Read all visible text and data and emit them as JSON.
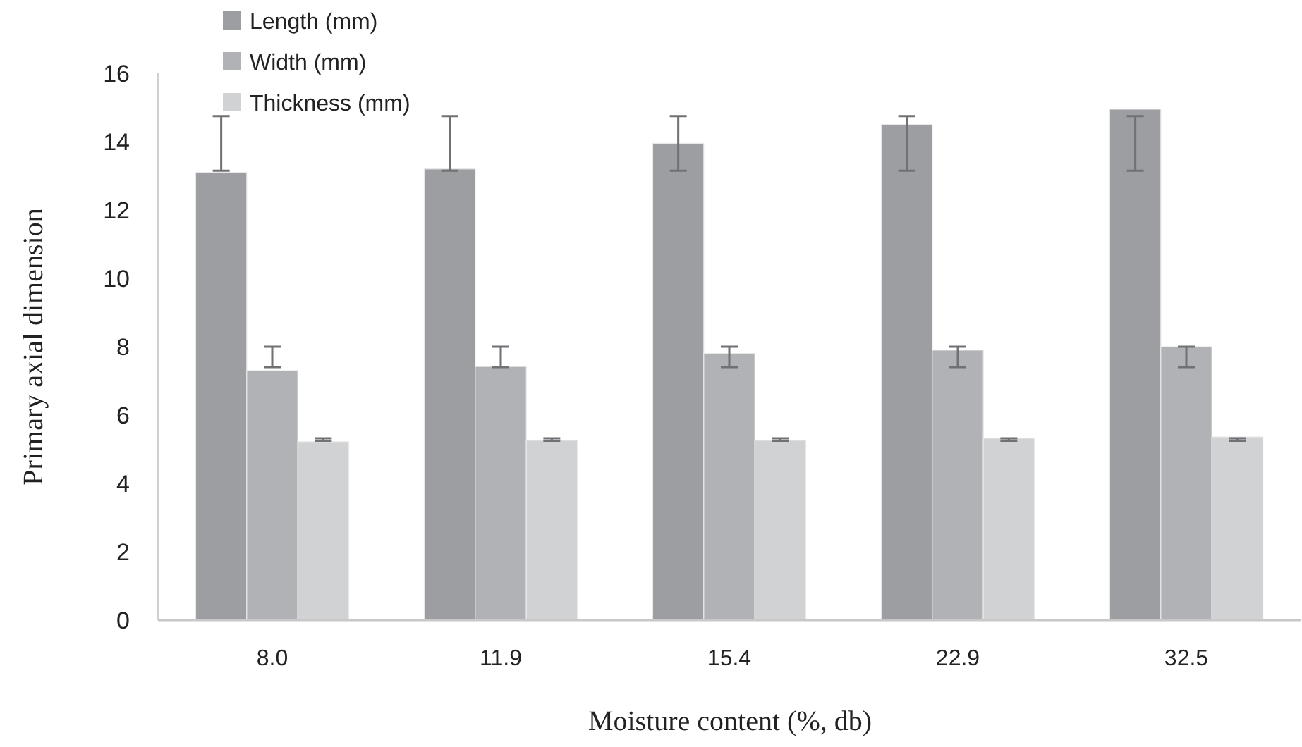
{
  "chart_data": {
    "type": "bar",
    "xlabel": "Moisture content (%, db)",
    "ylabel": "Primary axial dimension",
    "categories": [
      "8.0",
      "11.9",
      "15.4",
      "22.9",
      "32.5"
    ],
    "series": [
      {
        "name": "Length (mm)",
        "color": "#9d9ea2",
        "values": [
          13.1,
          13.2,
          13.95,
          14.5,
          14.95
        ],
        "errors": [
          [
            13.15,
            14.75
          ],
          [
            13.15,
            14.75
          ],
          [
            13.15,
            14.75
          ],
          [
            13.15,
            14.75
          ],
          [
            13.15,
            14.75
          ]
        ]
      },
      {
        "name": "Width (mm)",
        "color": "#b1b2b6",
        "values": [
          7.3,
          7.42,
          7.8,
          7.9,
          8.0
        ],
        "errors": [
          [
            7.4,
            8.0
          ],
          [
            7.4,
            8.0
          ],
          [
            7.4,
            8.0
          ],
          [
            7.4,
            8.0
          ],
          [
            7.4,
            8.0
          ]
        ]
      },
      {
        "name": "Thickness (mm)",
        "color": "#d1d2d4",
        "values": [
          5.22,
          5.26,
          5.26,
          5.32,
          5.36
        ],
        "errors": [
          [
            5.25,
            5.32
          ],
          [
            5.25,
            5.32
          ],
          [
            5.25,
            5.32
          ],
          [
            5.25,
            5.32
          ],
          [
            5.25,
            5.32
          ]
        ]
      }
    ],
    "ylim": [
      0,
      16
    ],
    "yticks": [
      0,
      2,
      4,
      6,
      8,
      10,
      12,
      14,
      16
    ],
    "grid": false,
    "legend": "top left"
  }
}
